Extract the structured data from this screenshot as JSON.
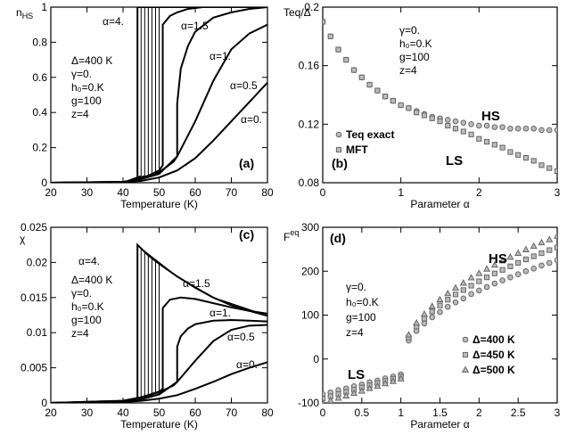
{
  "chart_data": [
    {
      "type": "line",
      "x_label": "Temperature (K)",
      "y_label": "n",
      "y_label_sub": "HS",
      "xlim": [
        20,
        80
      ],
      "ylim": [
        0,
        1
      ],
      "xticks": [
        20,
        30,
        40,
        50,
        60,
        70,
        80
      ],
      "yticks": [
        0,
        0.2,
        0.4,
        0.6,
        0.8,
        1
      ],
      "annotations": [
        "Δ=400 K",
        "γ=0.",
        "h₀=0.K",
        "g=100",
        "z=4"
      ],
      "panel_label": "(a)",
      "series": [
        {
          "name": "α=4.",
          "color": "#000",
          "x": [
            20,
            40,
            44,
            44,
            80
          ],
          "values": [
            0,
            0.002,
            0.02,
            1,
            1
          ]
        },
        {
          "color": "#000",
          "x": [
            20,
            40,
            45,
            45,
            80
          ],
          "values": [
            0,
            0.003,
            0.04,
            1,
            1
          ]
        },
        {
          "color": "#000",
          "x": [
            20,
            40,
            46,
            46,
            80
          ],
          "values": [
            0,
            0.003,
            0.04,
            1,
            1
          ]
        },
        {
          "color": "#000",
          "x": [
            20,
            40,
            47,
            47,
            80
          ],
          "values": [
            0,
            0.003,
            0.04,
            1,
            1
          ]
        },
        {
          "color": "#000",
          "x": [
            20,
            40,
            48,
            48,
            80
          ],
          "values": [
            0,
            0.003,
            0.04,
            1,
            1
          ]
        },
        {
          "color": "#000",
          "x": [
            20,
            40,
            49,
            49,
            80
          ],
          "values": [
            0,
            0.003,
            0.05,
            1,
            1
          ]
        },
        {
          "color": "#000",
          "x": [
            20,
            40,
            50,
            50,
            80
          ],
          "values": [
            0,
            0.003,
            0.06,
            1,
            1
          ]
        },
        {
          "name": "α=1.5",
          "color": "#000",
          "x": [
            20,
            40,
            45,
            50,
            51,
            51,
            53,
            55,
            58,
            62,
            70,
            80
          ],
          "values": [
            0,
            0.004,
            0.02,
            0.07,
            0.1,
            0.9,
            0.95,
            0.97,
            0.99,
            1,
            1,
            1
          ]
        },
        {
          "name": "α=1.",
          "color": "#000",
          "x": [
            20,
            40,
            45,
            50,
            54,
            55,
            55,
            56,
            58,
            60,
            65,
            70,
            75,
            80
          ],
          "values": [
            0,
            0.005,
            0.02,
            0.06,
            0.12,
            0.15,
            0.45,
            0.65,
            0.78,
            0.86,
            0.94,
            0.97,
            0.99,
            1
          ]
        },
        {
          "name": "α=0.5",
          "color": "#000",
          "x": [
            20,
            40,
            45,
            50,
            55,
            60,
            65,
            70,
            75,
            80
          ],
          "values": [
            0,
            0.005,
            0.02,
            0.05,
            0.15,
            0.35,
            0.58,
            0.76,
            0.85,
            0.9
          ]
        },
        {
          "name": "α=0.",
          "color": "#000",
          "x": [
            20,
            40,
            45,
            50,
            55,
            60,
            65,
            70,
            75,
            80
          ],
          "values": [
            0,
            0.004,
            0.01,
            0.03,
            0.07,
            0.14,
            0.24,
            0.35,
            0.46,
            0.57
          ]
        }
      ]
    },
    {
      "type": "scatter",
      "x_label": "Parameter α",
      "y_label": "Teq/Δ",
      "xlim": [
        0,
        3
      ],
      "ylim": [
        0.08,
        0.2
      ],
      "xticks": [
        0,
        1,
        2,
        3
      ],
      "yticks": [
        0.08,
        0.12,
        0.16,
        0.2
      ],
      "annotations": [
        "γ=0.",
        "h₀=0.K",
        "g=100",
        "z=4",
        "HS",
        "LS"
      ],
      "panel_label": "(b)",
      "x": [
        0,
        0.1,
        0.2,
        0.3,
        0.4,
        0.5,
        0.6,
        0.7,
        0.8,
        0.9,
        1,
        1.1,
        1.2,
        1.3,
        1.4,
        1.5,
        1.6,
        1.7,
        1.8,
        1.9,
        2,
        2.1,
        2.2,
        2.3,
        2.4,
        2.5,
        2.6,
        2.7,
        2.8,
        2.9,
        3
      ],
      "series": [
        {
          "name": "Teq exact",
          "color": "#666",
          "marker": "circle",
          "values": [
            0.19,
            0.18,
            0.171,
            0.164,
            0.157,
            0.152,
            0.147,
            0.143,
            0.139,
            0.136,
            0.133,
            0.131,
            0.129,
            0.127,
            0.125,
            0.124,
            0.123,
            0.122,
            0.121,
            0.12,
            0.119,
            0.119,
            0.118,
            0.118,
            0.117,
            0.117,
            0.117,
            0.117,
            0.116,
            0.116,
            0.116
          ]
        },
        {
          "name": "MFT",
          "color": "#666",
          "marker": "square",
          "values": [
            0.19,
            0.18,
            0.171,
            0.164,
            0.157,
            0.152,
            0.147,
            0.143,
            0.139,
            0.136,
            0.133,
            0.131,
            0.128,
            0.126,
            0.124,
            0.122,
            0.119,
            0.117,
            0.115,
            0.113,
            0.11,
            0.108,
            0.106,
            0.104,
            0.101,
            0.099,
            0.097,
            0.095,
            0.092,
            0.09,
            0.088
          ]
        }
      ]
    },
    {
      "type": "line",
      "x_label": "Temperature (K)",
      "y_label": "χ",
      "xlim": [
        20,
        80
      ],
      "ylim": [
        0,
        0.025
      ],
      "xticks": [
        20,
        30,
        40,
        50,
        60,
        70,
        80
      ],
      "yticks": [
        0,
        0.005,
        0.01,
        0.015,
        0.02,
        0.025
      ],
      "annotations": [
        "Δ=400 K",
        "γ=0.",
        "h₀=0.K",
        "g=100",
        "z=4"
      ],
      "panel_label": "(c)",
      "series": [
        {
          "name": "α=4.",
          "color": "#000",
          "x": [
            20,
            40,
            44,
            44,
            47,
            50,
            55,
            60,
            65,
            70,
            75,
            80
          ],
          "values": [
            0,
            0.0002,
            0.0006,
            0.0225,
            0.021,
            0.0198,
            0.018,
            0.0164,
            0.015,
            0.0139,
            0.0131,
            0.0124
          ]
        },
        {
          "color": "#000",
          "x": [
            20,
            40,
            45,
            45,
            55,
            65,
            80
          ],
          "values": [
            0,
            0.0002,
            0.0008,
            0.022,
            0.018,
            0.015,
            0.0124
          ]
        },
        {
          "color": "#000",
          "x": [
            20,
            40,
            46,
            46,
            55,
            65,
            80
          ],
          "values": [
            0,
            0.0002,
            0.0008,
            0.0215,
            0.018,
            0.015,
            0.0124
          ]
        },
        {
          "color": "#000",
          "x": [
            20,
            40,
            47,
            47,
            55,
            65,
            80
          ],
          "values": [
            0,
            0.0002,
            0.0009,
            0.021,
            0.018,
            0.015,
            0.0124
          ]
        },
        {
          "color": "#000",
          "x": [
            20,
            40,
            48,
            48,
            55,
            65,
            80
          ],
          "values": [
            0,
            0.0002,
            0.001,
            0.0206,
            0.018,
            0.015,
            0.0124
          ]
        },
        {
          "color": "#000",
          "x": [
            20,
            40,
            49,
            49,
            55,
            65,
            80
          ],
          "values": [
            0,
            0.0002,
            0.0011,
            0.0202,
            0.018,
            0.015,
            0.0124
          ]
        },
        {
          "color": "#000",
          "x": [
            20,
            40,
            50,
            50,
            55,
            65,
            80
          ],
          "values": [
            0,
            0.0002,
            0.0012,
            0.0198,
            0.018,
            0.015,
            0.0124
          ]
        },
        {
          "name": "α=1.5",
          "color": "#000",
          "x": [
            20,
            40,
            45,
            50,
            51,
            51,
            53,
            56,
            60,
            65,
            70,
            75,
            80
          ],
          "values": [
            0,
            0.0003,
            0.0008,
            0.0016,
            0.002,
            0.0135,
            0.0147,
            0.015,
            0.0148,
            0.0142,
            0.0136,
            0.0131,
            0.0127
          ]
        },
        {
          "name": "α=1.",
          "color": "#000",
          "x": [
            20,
            40,
            45,
            50,
            54,
            55,
            55,
            56,
            58,
            60,
            65,
            70,
            75,
            80
          ],
          "values": [
            0,
            0.0003,
            0.0008,
            0.0015,
            0.0025,
            0.003,
            0.008,
            0.0095,
            0.0106,
            0.0112,
            0.0117,
            0.0118,
            0.0117,
            0.0116
          ]
        },
        {
          "name": "α=0.5",
          "color": "#000",
          "x": [
            20,
            40,
            45,
            50,
            55,
            60,
            65,
            70,
            75,
            80
          ],
          "values": [
            0,
            0.0002,
            0.0005,
            0.0012,
            0.003,
            0.006,
            0.0088,
            0.0104,
            0.011,
            0.0111
          ]
        },
        {
          "name": "α=0.",
          "color": "#000",
          "x": [
            20,
            40,
            45,
            50,
            55,
            60,
            65,
            70,
            75,
            80
          ],
          "values": [
            0,
            0.0001,
            0.0003,
            0.0006,
            0.0011,
            0.002,
            0.003,
            0.0041,
            0.005,
            0.0058
          ]
        }
      ]
    },
    {
      "type": "scatter",
      "x_label": "Parameter α",
      "y_label": "F",
      "y_label_sup": "eq",
      "xlim": [
        0,
        3
      ],
      "ylim": [
        -100,
        300
      ],
      "xticks": [
        0,
        0.5,
        1,
        1.5,
        2,
        2.5,
        3
      ],
      "yticks": [
        -100,
        0,
        100,
        200,
        300
      ],
      "annotations": [
        "γ=0.",
        "h₀=0.K",
        "g=100",
        "z=4",
        "HS",
        "LS"
      ],
      "panel_label": "(d)",
      "x": [
        0,
        0.1,
        0.2,
        0.3,
        0.4,
        0.5,
        0.6,
        0.7,
        0.8,
        0.9,
        1,
        1.1,
        1.2,
        1.3,
        1.4,
        1.5,
        1.6,
        1.7,
        1.8,
        1.9,
        2,
        2.1,
        2.2,
        2.3,
        2.4,
        2.5,
        2.6,
        2.7,
        2.8,
        2.9,
        3
      ],
      "series": [
        {
          "name": "Δ=400 K",
          "color": "#666",
          "marker": "circle",
          "values": [
            -80,
            -76,
            -71,
            -67,
            -62,
            -58,
            -53,
            -49,
            -44,
            -40,
            -35,
            42,
            64,
            81,
            95,
            107,
            119,
            129,
            138,
            148,
            156,
            164,
            172,
            179,
            186,
            193,
            200,
            206,
            213,
            219,
            225
          ]
        },
        {
          "name": "Δ=450 K",
          "color": "#666",
          "marker": "square",
          "values": [
            -90,
            -85,
            -80,
            -75,
            -70,
            -65,
            -60,
            -55,
            -50,
            -45,
            -40,
            49,
            74,
            92,
            108,
            122,
            135,
            147,
            157,
            167,
            177,
            186,
            195,
            203,
            211,
            219,
            227,
            234,
            241,
            248,
            254
          ]
        },
        {
          "name": "Δ=500 K",
          "color": "#666",
          "marker": "triangle",
          "values": [
            -100,
            -95,
            -89,
            -84,
            -78,
            -73,
            -67,
            -62,
            -56,
            -51,
            -45,
            55,
            82,
            102,
            120,
            135,
            149,
            162,
            173,
            185,
            195,
            205,
            214,
            224,
            232,
            241,
            249,
            257,
            265,
            272,
            280
          ]
        }
      ]
    }
  ]
}
